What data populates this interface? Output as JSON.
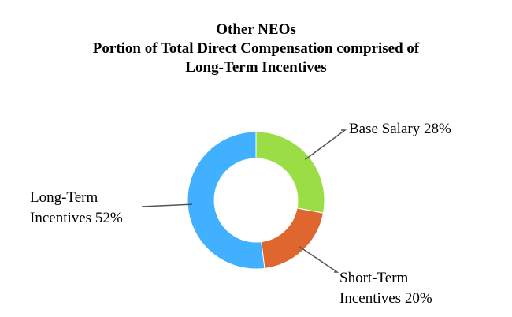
{
  "chart_data": {
    "type": "pie",
    "variant": "donut",
    "title": "Other NEOs",
    "subtitle": [
      "Portion of Total Direct Compensation comprised of",
      "Long-Term Incentives"
    ],
    "slices": [
      {
        "label": "Base Salary",
        "value": 28,
        "color": "#9BDD44",
        "display": [
          "Base Salary 28%"
        ]
      },
      {
        "label": "Short-Term Incentives",
        "value": 20,
        "color": "#E0662F",
        "display": [
          "Short-Term",
          "Incentives 20%"
        ]
      },
      {
        "label": "Long-Term Incentives",
        "value": 52,
        "color": "#40B0FF",
        "display": [
          "Long-Term",
          "Incentives 52%"
        ]
      }
    ],
    "unit": "%",
    "legend": "none"
  }
}
